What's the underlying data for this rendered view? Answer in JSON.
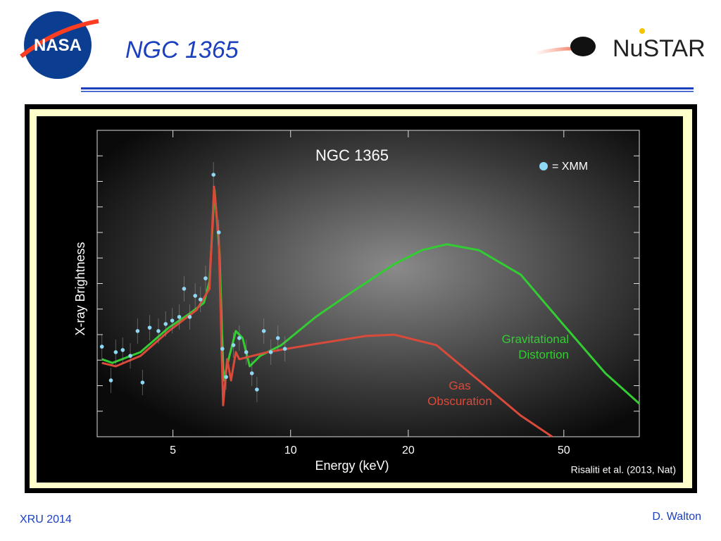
{
  "header": {
    "logo": "NASA",
    "title": "NGC 1365",
    "mission": "NuSTAR"
  },
  "chart_data": {
    "type": "line",
    "title": "NGC 1365",
    "x_label": "Energy (keV)",
    "y_label": "X-ray Brightness",
    "xscale": "log",
    "xlim": [
      3.2,
      78
    ],
    "xticks": [
      5,
      10,
      20,
      50
    ],
    "ylim": [
      0,
      10
    ],
    "series": [
      {
        "name": "Gravitational Distortion",
        "color": "#33cc33",
        "x": [
          3.29,
          3.5,
          4.13,
          4.88,
          5.52,
          6.0,
          6.2,
          6.39,
          6.58,
          6.74,
          6.94,
          7.24,
          7.54,
          7.86,
          8.36,
          9.47,
          11.6,
          14.3,
          18.4,
          21.7,
          25.1,
          30.3,
          38.8,
          49.7,
          63.9,
          78
        ],
        "values": [
          2.53,
          2.41,
          2.76,
          3.56,
          4.02,
          4.37,
          5.06,
          8.05,
          5.98,
          1.84,
          2.53,
          3.45,
          3.22,
          2.3,
          2.64,
          2.99,
          3.91,
          4.71,
          5.63,
          6.09,
          6.28,
          6.09,
          5.29,
          3.68,
          2.07,
          1.08
        ]
      },
      {
        "name": "Gas Obscuration",
        "color": "#d94a3a",
        "x": [
          3.29,
          3.57,
          4.13,
          4.88,
          5.75,
          6.2,
          6.37,
          6.55,
          6.72,
          6.88,
          7.04,
          7.24,
          7.39,
          8.72,
          11.6,
          15.6,
          18.4,
          23.6,
          30.3,
          38.8,
          46.7
        ],
        "values": [
          2.41,
          2.3,
          2.64,
          3.45,
          4.14,
          4.83,
          8.16,
          6.44,
          1.03,
          2.53,
          1.84,
          2.76,
          2.53,
          2.76,
          3.03,
          3.29,
          3.33,
          2.99,
          1.84,
          0.69,
          0
        ]
      },
      {
        "name": "= XMM",
        "color": "#8fd8f5",
        "type": "scatter",
        "x": [
          3.29,
          3.47,
          3.57,
          3.72,
          3.89,
          4.06,
          4.18,
          4.36,
          4.59,
          4.79,
          4.98,
          5.19,
          5.34,
          5.52,
          5.7,
          5.88,
          6.06,
          6.35,
          6.55,
          6.69,
          6.84,
          7.14,
          7.39,
          7.7,
          7.96,
          8.2,
          8.54,
          8.9,
          9.28,
          9.67
        ],
        "values": [
          2.94,
          1.84,
          2.76,
          2.83,
          2.64,
          3.45,
          1.77,
          3.56,
          3.45,
          3.68,
          3.79,
          3.91,
          4.83,
          3.91,
          4.6,
          4.48,
          5.17,
          8.55,
          6.67,
          2.87,
          1.95,
          2.99,
          3.22,
          2.76,
          2.07,
          1.54,
          3.45,
          2.76,
          3.22,
          2.87
        ]
      }
    ],
    "annotation": "Risaliti et al. (2013, Nat)"
  },
  "footer": {
    "left": "XRU 2014",
    "right": "D. Walton"
  }
}
